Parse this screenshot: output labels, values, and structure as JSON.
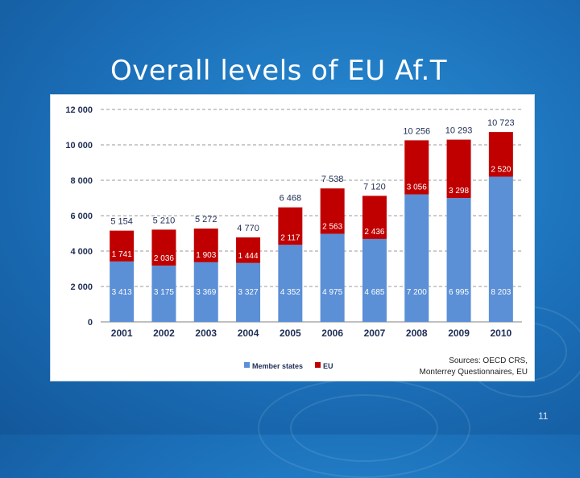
{
  "slide": {
    "title": "Overall levels of EU Af.T",
    "page_number": "11"
  },
  "colors": {
    "member_states": "#5b8fd6",
    "eu": "#c00000",
    "grid": "#9a9a9a",
    "axis_text": "#1f2d55"
  },
  "chart_data": {
    "type": "bar",
    "stacked": true,
    "categories": [
      "2001",
      "2002",
      "2003",
      "2004",
      "2005",
      "2006",
      "2007",
      "2008",
      "2009",
      "2010"
    ],
    "series": [
      {
        "name": "Member states",
        "values": [
          3413,
          3175,
          3369,
          3327,
          4352,
          4975,
          4685,
          7200,
          6995,
          8203
        ],
        "labels": [
          "3 413",
          "3 175",
          "3 369",
          "3 327",
          "4 352",
          "4 975",
          "4 685",
          "7 200",
          "6 995",
          "8 203"
        ]
      },
      {
        "name": "EU",
        "values": [
          1741,
          2036,
          1903,
          1444,
          2117,
          2563,
          2436,
          3056,
          3298,
          2520
        ],
        "labels": [
          "1 741",
          "2 036",
          "1 903",
          "1 444",
          "2 117",
          "2 563",
          "2 436",
          "3 056",
          "3 298",
          "2 520"
        ]
      }
    ],
    "totals": [
      5154,
      5210,
      5272,
      4770,
      6468,
      7538,
      7120,
      10256,
      10293,
      10723
    ],
    "total_labels": [
      "5 154",
      "5 210",
      "5 272",
      "4 770",
      "6 468",
      "7 538",
      "7 120",
      "10 256",
      "10 293",
      "10 723"
    ],
    "y_ticks": [
      "0",
      "2 000",
      "4 000",
      "6 000",
      "8 000",
      "10 000",
      "12 000"
    ],
    "ylim": [
      0,
      12000
    ],
    "grid": true,
    "legend": [
      "Member states",
      "EU"
    ],
    "legend_position": "bottom-center",
    "source_line1": "Sources: OECD CRS,",
    "source_line2": "Monterrey Questionnaires, EU"
  }
}
